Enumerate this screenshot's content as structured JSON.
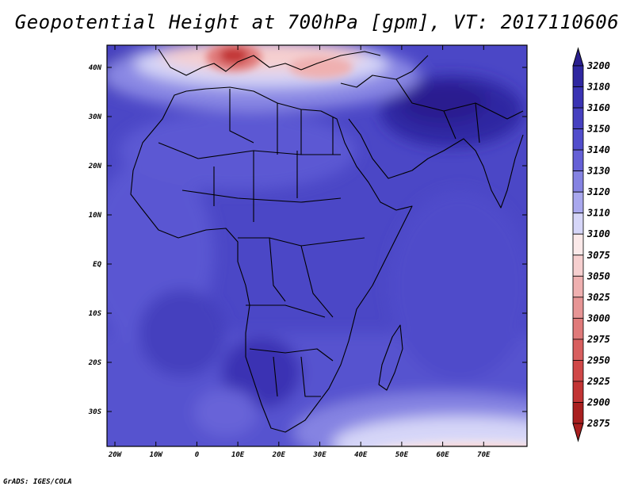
{
  "title": "Geopotential Height at 700hPa [gpm], VT: 2017110606",
  "credit": "GrADS: IGES/COLA",
  "map": {
    "lat_labels": [
      "40N",
      "30N",
      "20N",
      "10N",
      "EQ",
      "10S",
      "20S",
      "30S"
    ],
    "lon_labels": [
      "20W",
      "10W",
      "0",
      "10E",
      "20E",
      "30E",
      "40E",
      "50E",
      "60E",
      "70E"
    ],
    "lon_range": [
      -22,
      80
    ],
    "lat_range": [
      -37,
      45
    ]
  },
  "colorbar": {
    "levels": [
      {
        "label": "3200",
        "color": "#2a1f8f"
      },
      {
        "label": "3180",
        "color": "#2f27a0"
      },
      {
        "label": "3160",
        "color": "#3a33b3"
      },
      {
        "label": "3150",
        "color": "#4640c0"
      },
      {
        "label": "3140",
        "color": "#514dcc"
      },
      {
        "label": "3130",
        "color": "#6560d6"
      },
      {
        "label": "3120",
        "color": "#8583e2"
      },
      {
        "label": "3110",
        "color": "#a9a8ee"
      },
      {
        "label": "3100",
        "color": "#d6d6f8"
      },
      {
        "label": "3075",
        "color": "#fbe9e9"
      },
      {
        "label": "3050",
        "color": "#f6cfcf"
      },
      {
        "label": "3025",
        "color": "#efb0b0"
      },
      {
        "label": "3000",
        "color": "#e79595"
      },
      {
        "label": "2975",
        "color": "#e07a7a"
      },
      {
        "label": "2950",
        "color": "#d85f5f"
      },
      {
        "label": "2925",
        "color": "#d04848"
      },
      {
        "label": "2900",
        "color": "#c23434"
      },
      {
        "label": "2875",
        "color": "#a91f1f"
      }
    ]
  }
}
